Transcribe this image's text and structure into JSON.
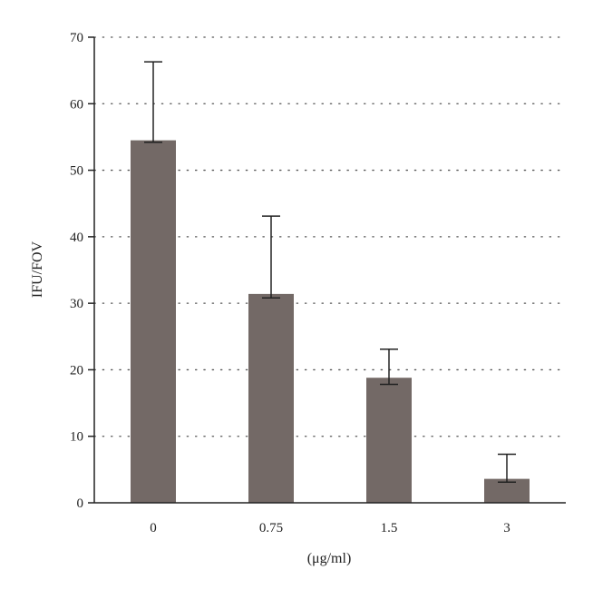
{
  "chart_data": {
    "type": "bar",
    "categories": [
      "0",
      "0.75",
      "1.5",
      "3"
    ],
    "values": [
      54.5,
      31.4,
      18.8,
      3.6
    ],
    "error_upper": [
      66.3,
      43.1,
      23.1,
      7.3
    ],
    "error_lower": [
      54.2,
      30.8,
      17.8,
      3.1
    ],
    "title": "",
    "xlabel": "(μg/ml)",
    "ylabel": "IFU/FOV",
    "ylim": [
      0,
      70
    ],
    "yticks": [
      "0",
      "10",
      "20",
      "30",
      "40",
      "50",
      "60",
      "70"
    ],
    "grid": "horizontal dotted",
    "colors": {
      "bar": "#736966",
      "axis": "#222222",
      "grid": "#555555",
      "error": "#222222"
    }
  }
}
